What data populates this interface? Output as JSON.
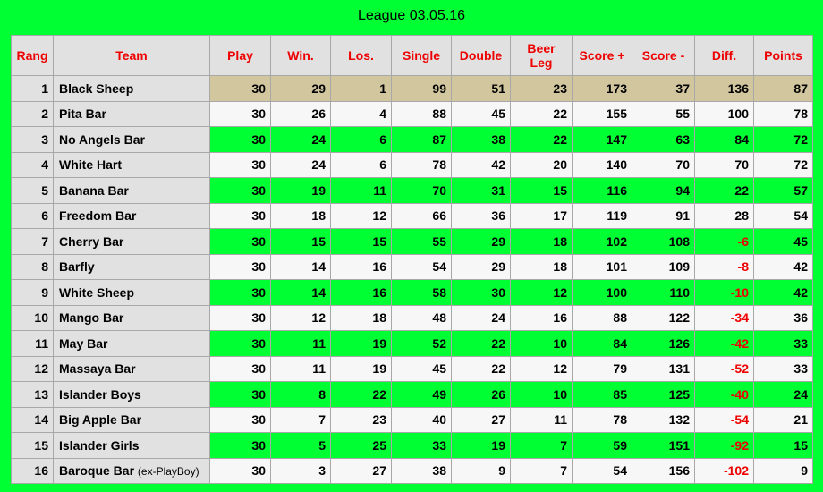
{
  "title": "League 03.05.16",
  "headers": {
    "rang": "Rang",
    "team": "Team",
    "play": "Play",
    "win": "Win.",
    "los": "Los.",
    "single": "Single",
    "double": "Double",
    "beer_leg_1": "Beer",
    "beer_leg_2": "Leg",
    "score_plus": "Score +",
    "score_minus": "Score -",
    "diff": "Diff.",
    "points": "Points"
  },
  "rows": [
    {
      "rang": "1",
      "team": "Black Sheep",
      "note": "",
      "play": "30",
      "win": "29",
      "los": "1",
      "single": "99",
      "double": "51",
      "beer": "23",
      "score_plus": "173",
      "score_minus": "37",
      "diff": "136",
      "points": "87"
    },
    {
      "rang": "2",
      "team": "Pita Bar",
      "note": "",
      "play": "30",
      "win": "26",
      "los": "4",
      "single": "88",
      "double": "45",
      "beer": "22",
      "score_plus": "155",
      "score_minus": "55",
      "diff": "100",
      "points": "78"
    },
    {
      "rang": "3",
      "team": "No Angels Bar",
      "note": "",
      "play": "30",
      "win": "24",
      "los": "6",
      "single": "87",
      "double": "38",
      "beer": "22",
      "score_plus": "147",
      "score_minus": "63",
      "diff": "84",
      "points": "72"
    },
    {
      "rang": "4",
      "team": "White Hart",
      "note": "",
      "play": "30",
      "win": "24",
      "los": "6",
      "single": "78",
      "double": "42",
      "beer": "20",
      "score_plus": "140",
      "score_minus": "70",
      "diff": "70",
      "points": "72"
    },
    {
      "rang": "5",
      "team": "Banana Bar",
      "note": "",
      "play": "30",
      "win": "19",
      "los": "11",
      "single": "70",
      "double": "31",
      "beer": "15",
      "score_plus": "116",
      "score_minus": "94",
      "diff": "22",
      "points": "57"
    },
    {
      "rang": "6",
      "team": "Freedom Bar",
      "note": "",
      "play": "30",
      "win": "18",
      "los": "12",
      "single": "66",
      "double": "36",
      "beer": "17",
      "score_plus": "119",
      "score_minus": "91",
      "diff": "28",
      "points": "54"
    },
    {
      "rang": "7",
      "team": "Cherry Bar",
      "note": "",
      "play": "30",
      "win": "15",
      "los": "15",
      "single": "55",
      "double": "29",
      "beer": "18",
      "score_plus": "102",
      "score_minus": "108",
      "diff": "-6",
      "points": "45"
    },
    {
      "rang": "8",
      "team": "Barfly",
      "note": "",
      "play": "30",
      "win": "14",
      "los": "16",
      "single": "54",
      "double": "29",
      "beer": "18",
      "score_plus": "101",
      "score_minus": "109",
      "diff": "-8",
      "points": "42"
    },
    {
      "rang": "9",
      "team": "White Sheep",
      "note": "",
      "play": "30",
      "win": "14",
      "los": "16",
      "single": "58",
      "double": "30",
      "beer": "12",
      "score_plus": "100",
      "score_minus": "110",
      "diff": "-10",
      "points": "42"
    },
    {
      "rang": "10",
      "team": "Mango Bar",
      "note": "",
      "play": "30",
      "win": "12",
      "los": "18",
      "single": "48",
      "double": "24",
      "beer": "16",
      "score_plus": "88",
      "score_minus": "122",
      "diff": "-34",
      "points": "36"
    },
    {
      "rang": "11",
      "team": "May Bar",
      "note": "",
      "play": "30",
      "win": "11",
      "los": "19",
      "single": "52",
      "double": "22",
      "beer": "10",
      "score_plus": "84",
      "score_minus": "126",
      "diff": "-42",
      "points": "33"
    },
    {
      "rang": "12",
      "team": "Massaya Bar",
      "note": "",
      "play": "30",
      "win": "11",
      "los": "19",
      "single": "45",
      "double": "22",
      "beer": "12",
      "score_plus": "79",
      "score_minus": "131",
      "diff": "-52",
      "points": "33"
    },
    {
      "rang": "13",
      "team": "Islander Boys",
      "note": "",
      "play": "30",
      "win": "8",
      "los": "22",
      "single": "49",
      "double": "26",
      "beer": "10",
      "score_plus": "85",
      "score_minus": "125",
      "diff": "-40",
      "points": "24"
    },
    {
      "rang": "14",
      "team": "Big Apple Bar",
      "note": "",
      "play": "30",
      "win": "7",
      "los": "23",
      "single": "40",
      "double": "27",
      "beer": "11",
      "score_plus": "78",
      "score_minus": "132",
      "diff": "-54",
      "points": "21"
    },
    {
      "rang": "15",
      "team": "Islander Girls",
      "note": "",
      "play": "30",
      "win": "5",
      "los": "25",
      "single": "33",
      "double": "19",
      "beer": "7",
      "score_plus": "59",
      "score_minus": "151",
      "diff": "-92",
      "points": "15"
    },
    {
      "rang": "16",
      "team": "Baroque Bar",
      "note": "(ex-PlayBoy)",
      "play": "30",
      "win": "3",
      "los": "27",
      "single": "38",
      "double": "9",
      "beer": "7",
      "score_plus": "54",
      "score_minus": "156",
      "diff": "-102",
      "points": "9"
    }
  ],
  "colors": {
    "background": "#00ff33",
    "leader_row": "#d2c69e",
    "alt_row": "#f7f7f7",
    "header_bg": "#e1e1e1",
    "header_text": "#ee0000",
    "negative_text": "#ee0000"
  }
}
